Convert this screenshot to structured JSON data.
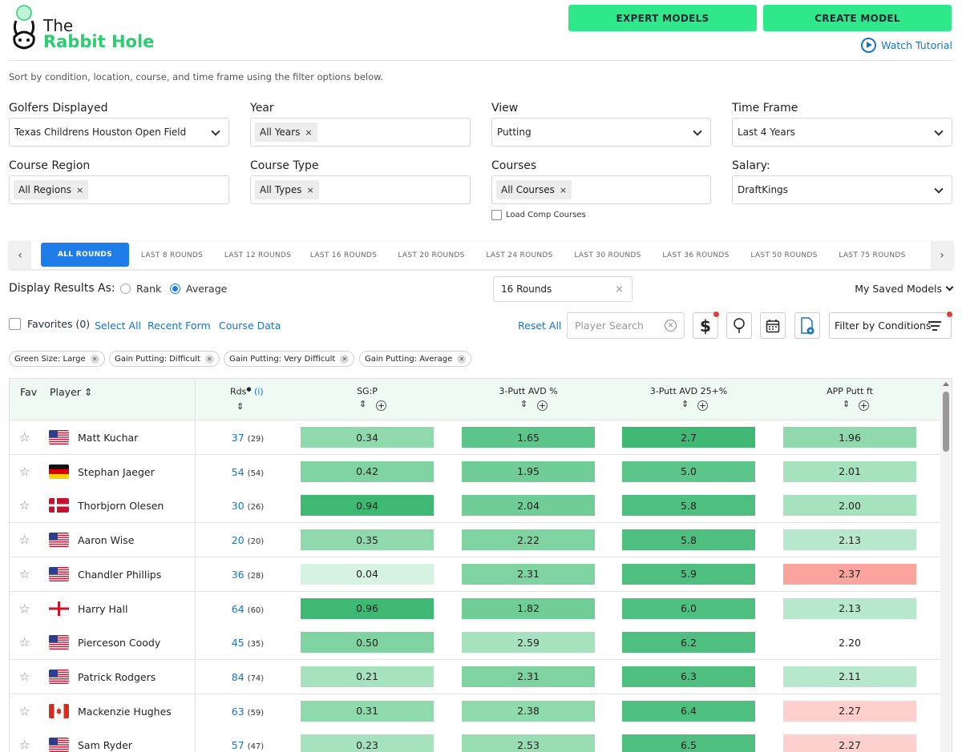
{
  "header": {
    "logo_the": "The",
    "logo_main": "Rabbit Hole",
    "expert_models": "EXPERT MODELS",
    "create_model": "CREATE MODEL",
    "watch_tutorial": "Watch Tutorial",
    "subtitle": "Sort by condition, location, course, and time frame using the filter options below."
  },
  "filters": {
    "golfers_label": "Golfers Displayed",
    "golfers_value": "Texas Childrens Houston Open Field",
    "year_label": "Year",
    "year_chip": "All Years",
    "view_label": "View",
    "view_value": "Putting",
    "timeframe_label": "Time Frame",
    "timeframe_value": "Last 4 Years",
    "region_label": "Course Region",
    "region_chip": "All Regions",
    "type_label": "Course Type",
    "type_chip": "All Types",
    "courses_label": "Courses",
    "courses_chip": "All Courses",
    "salary_label": "Salary:",
    "salary_value": "DraftKings",
    "load_comp": "Load Comp Courses"
  },
  "rounds_tabs": [
    "ALL ROUNDS",
    "LAST 8 ROUNDS",
    "LAST 12 ROUNDS",
    "LAST 16 ROUNDS",
    "LAST 20 ROUNDS",
    "LAST 24 ROUNDS",
    "LAST 30 ROUNDS",
    "LAST 36 ROUNDS",
    "LAST 50 ROUNDS",
    "LAST 75 ROUNDS"
  ],
  "display": {
    "label": "Display Results As:",
    "rank": "Rank",
    "average": "Average",
    "rounds_value": "16 Rounds",
    "saved_models": "My Saved Models"
  },
  "toolbar": {
    "favorites": "Favorites (0)",
    "select_all": "Select All",
    "recent_form": "Recent Form",
    "course_data": "Course Data",
    "reset_all": "Reset All",
    "search_placeholder": "Player Search",
    "filter_conditions": "Filter by Conditions"
  },
  "condition_chips": [
    "Green Size: Large",
    "Gain Putting: Difficult",
    "Gain Putting: Very Difficult",
    "Gain Putting: Average"
  ],
  "table": {
    "headers": {
      "fav": "Fav",
      "player": "Player",
      "rds": "Rds",
      "rds_info": "(i)",
      "sgp": "SG:P",
      "threeputt": "3-Putt AVD %",
      "threeputt25": "3-Putt AVD 25+%",
      "app": "APP Putt ft"
    },
    "rows": [
      {
        "name": "Matt Kuchar",
        "flag": "usa",
        "rds": "37",
        "rds_sub": "(29)",
        "sgp": "0.34",
        "tp": "1.65",
        "tp25": "2.7",
        "app": "1.96"
      },
      {
        "name": "Stephan Jaeger",
        "flag": "germany",
        "rds": "54",
        "rds_sub": "(54)",
        "sgp": "0.42",
        "tp": "1.95",
        "tp25": "5.0",
        "app": "2.01"
      },
      {
        "name": "Thorbjorn Olesen",
        "flag": "denmark",
        "rds": "30",
        "rds_sub": "(26)",
        "sgp": "0.94",
        "tp": "2.04",
        "tp25": "5.8",
        "app": "2.00"
      },
      {
        "name": "Aaron Wise",
        "flag": "usa",
        "rds": "20",
        "rds_sub": "(20)",
        "sgp": "0.35",
        "tp": "2.22",
        "tp25": "5.8",
        "app": "2.13"
      },
      {
        "name": "Chandler Phillips",
        "flag": "usa",
        "rds": "36",
        "rds_sub": "(28)",
        "sgp": "0.04",
        "tp": "2.31",
        "tp25": "5.9",
        "app": "2.37"
      },
      {
        "name": "Harry Hall",
        "flag": "england",
        "rds": "64",
        "rds_sub": "(60)",
        "sgp": "0.96",
        "tp": "1.82",
        "tp25": "6.0",
        "app": "2.13"
      },
      {
        "name": "Pierceson Coody",
        "flag": "usa",
        "rds": "45",
        "rds_sub": "(35)",
        "sgp": "0.50",
        "tp": "2.59",
        "tp25": "6.2",
        "app": "2.20"
      },
      {
        "name": "Patrick Rodgers",
        "flag": "usa",
        "rds": "84",
        "rds_sub": "(74)",
        "sgp": "0.21",
        "tp": "2.31",
        "tp25": "6.3",
        "app": "2.11"
      },
      {
        "name": "Mackenzie Hughes",
        "flag": "canada",
        "rds": "63",
        "rds_sub": "(59)",
        "sgp": "0.31",
        "tp": "2.38",
        "tp25": "6.4",
        "app": "2.27"
      },
      {
        "name": "Sam Ryder",
        "flag": "usa",
        "rds": "57",
        "rds_sub": "(47)",
        "sgp": "0.23",
        "tp": "2.53",
        "tp25": "6.5",
        "app": "2.27"
      }
    ],
    "cell_colors": [
      [
        "#8fd9ac",
        "#5cc68a",
        "#3fb873",
        "#8fd9ac"
      ],
      [
        "#7fd3a0",
        "#6fcd95",
        "#5cc68a",
        "#a6e2bd"
      ],
      [
        "#3fb873",
        "#6fcd95",
        "#4fbf7f",
        "#a6e2bd"
      ],
      [
        "#8fd9ac",
        "#7fd3a0",
        "#4fbf7f",
        "#b8e8cb"
      ],
      [
        "#d6f3e1",
        "#7fd3a0",
        "#4fbf7f",
        "#fba39d"
      ],
      [
        "#3fb873",
        "#6fcd95",
        "#4fbf7f",
        "#b8e8cb"
      ],
      [
        "#7fd3a0",
        "#a6e2bd",
        "#4fbf7f",
        "#ffffff"
      ],
      [
        "#a6e2bd",
        "#7fd3a0",
        "#4fbf7f",
        "#b8e8cb"
      ],
      [
        "#8fd9ac",
        "#8fd9ac",
        "#4fbf7f",
        "#fdd0ce"
      ],
      [
        "#a6e2bd",
        "#99ddb3",
        "#4fbf7f",
        "#fdd0ce"
      ]
    ]
  },
  "colors": {
    "accent_green": "#2ee88a",
    "link_blue": "#1a73c8",
    "tab_active": "#1e7de8"
  }
}
